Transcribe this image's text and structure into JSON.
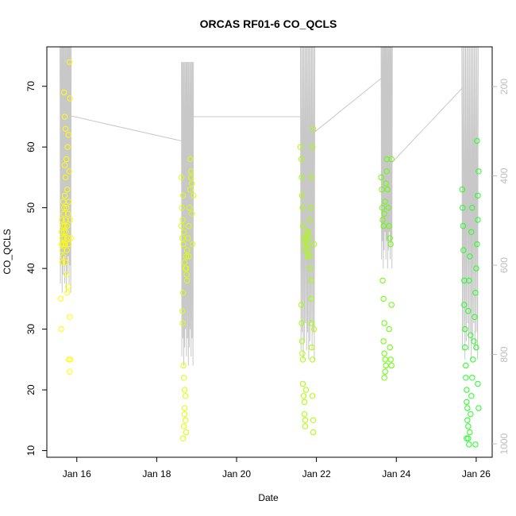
{
  "chart_data": {
    "type": "scatter",
    "title": "ORCAS RF01-6 CO_QCLS",
    "xlabel": "Date",
    "ylabel": "CO_QCLS",
    "x_ticks": [
      {
        "day": 16,
        "label": "Jan 16"
      },
      {
        "day": 18,
        "label": "Jan 18"
      },
      {
        "day": 20,
        "label": "Jan 20"
      },
      {
        "day": 22,
        "label": "Jan 22"
      },
      {
        "day": 24,
        "label": "Jan 24"
      },
      {
        "day": 26,
        "label": "Jan 26"
      }
    ],
    "xlim": [
      15.25,
      26.4
    ],
    "ylim": [
      8.9,
      76.5
    ],
    "y_ticks": [
      10,
      20,
      30,
      40,
      50,
      60,
      70
    ],
    "right_axis": {
      "description": "secondary (reversed) axis, gray",
      "ticks": [
        200,
        400,
        600,
        800,
        1000
      ],
      "range_top": 111,
      "range_bottom": 1030,
      "color": "#bdbdbd"
    },
    "grid": false,
    "series": [
      {
        "color": "#ffff00",
        "points": [
          [
            15.62,
            44
          ],
          [
            15.62,
            46
          ],
          [
            15.63,
            48
          ],
          [
            15.64,
            43
          ],
          [
            15.64,
            45
          ],
          [
            15.65,
            47
          ],
          [
            15.66,
            42
          ],
          [
            15.66,
            44
          ],
          [
            15.67,
            49
          ],
          [
            15.68,
            46
          ],
          [
            15.68,
            50
          ],
          [
            15.69,
            45
          ],
          [
            15.7,
            47
          ],
          [
            15.7,
            52
          ],
          [
            15.71,
            44
          ],
          [
            15.72,
            48
          ],
          [
            15.72,
            55
          ],
          [
            15.73,
            46
          ],
          [
            15.74,
            50
          ],
          [
            15.74,
            58
          ],
          [
            15.75,
            43
          ],
          [
            15.76,
            47
          ],
          [
            15.76,
            53
          ],
          [
            15.77,
            60
          ],
          [
            15.78,
            45
          ],
          [
            15.78,
            49
          ],
          [
            15.79,
            62
          ],
          [
            15.8,
            44
          ],
          [
            15.8,
            51
          ],
          [
            15.81,
            56
          ],
          [
            15.6,
            35
          ],
          [
            15.61,
            30
          ],
          [
            15.68,
            69
          ],
          [
            15.7,
            65
          ],
          [
            15.72,
            63
          ],
          [
            15.76,
            36
          ],
          [
            15.78,
            37
          ],
          [
            15.82,
            74
          ],
          [
            15.83,
            68
          ],
          [
            15.82,
            32
          ],
          [
            15.8,
            25
          ],
          [
            15.82,
            23
          ],
          [
            15.84,
            25
          ],
          [
            15.84,
            48
          ],
          [
            15.85,
            45
          ],
          [
            15.64,
            41
          ],
          [
            15.66,
            51
          ],
          [
            15.7,
            57
          ],
          [
            15.72,
            41
          ],
          [
            15.74,
            39
          ]
        ]
      },
      {
        "color": "#ddff00",
        "points": [
          [
            18.62,
            47
          ],
          [
            18.63,
            50
          ],
          [
            18.64,
            45
          ],
          [
            18.65,
            48
          ],
          [
            18.66,
            52
          ],
          [
            18.67,
            44
          ],
          [
            18.68,
            46
          ],
          [
            18.7,
            41
          ],
          [
            18.72,
            40
          ],
          [
            18.74,
            42
          ],
          [
            18.75,
            39
          ],
          [
            18.76,
            43
          ],
          [
            18.78,
            45
          ],
          [
            18.8,
            47
          ],
          [
            18.82,
            50
          ],
          [
            18.84,
            53
          ],
          [
            18.86,
            55
          ],
          [
            18.88,
            49
          ],
          [
            18.9,
            44
          ],
          [
            18.92,
            52
          ],
          [
            18.64,
            33
          ],
          [
            18.65,
            31
          ],
          [
            18.66,
            36
          ],
          [
            18.67,
            24
          ],
          [
            18.68,
            22
          ],
          [
            18.7,
            20
          ],
          [
            18.72,
            19
          ],
          [
            18.7,
            16
          ],
          [
            18.72,
            15
          ],
          [
            18.74,
            13
          ],
          [
            18.66,
            12
          ],
          [
            18.68,
            14
          ],
          [
            18.7,
            17
          ],
          [
            18.74,
            40
          ],
          [
            18.76,
            38
          ],
          [
            18.8,
            42
          ],
          [
            18.84,
            58
          ],
          [
            18.86,
            56
          ],
          [
            18.88,
            54
          ],
          [
            18.62,
            55
          ]
        ]
      },
      {
        "color": "#aaff00",
        "points": [
          [
            21.6,
            60
          ],
          [
            21.62,
            58
          ],
          [
            21.63,
            55
          ],
          [
            21.64,
            52
          ],
          [
            21.65,
            50
          ],
          [
            21.66,
            47
          ],
          [
            21.68,
            45
          ],
          [
            21.7,
            44
          ],
          [
            21.72,
            43
          ],
          [
            21.74,
            45
          ],
          [
            21.76,
            46
          ],
          [
            21.78,
            44
          ],
          [
            21.8,
            46
          ],
          [
            21.82,
            45
          ],
          [
            21.84,
            48
          ],
          [
            21.86,
            50
          ],
          [
            21.88,
            55
          ],
          [
            21.9,
            60
          ],
          [
            21.92,
            63
          ],
          [
            21.94,
            44
          ],
          [
            21.62,
            34
          ],
          [
            21.63,
            31
          ],
          [
            21.64,
            28
          ],
          [
            21.65,
            26
          ],
          [
            21.66,
            25
          ],
          [
            21.66,
            21
          ],
          [
            21.68,
            19
          ],
          [
            21.7,
            18
          ],
          [
            21.7,
            16
          ],
          [
            21.72,
            15
          ],
          [
            21.72,
            14
          ],
          [
            21.74,
            20
          ],
          [
            21.84,
            40
          ],
          [
            21.86,
            38
          ],
          [
            21.86,
            35
          ],
          [
            21.88,
            31
          ],
          [
            21.88,
            27
          ],
          [
            21.9,
            25
          ],
          [
            21.9,
            19
          ],
          [
            21.92,
            15
          ],
          [
            21.92,
            13
          ],
          [
            21.94,
            30
          ],
          [
            21.78,
            42
          ],
          [
            21.8,
            43
          ],
          [
            21.82,
            42
          ]
        ]
      },
      {
        "color": "#66ff00",
        "points": [
          [
            23.62,
            55
          ],
          [
            23.64,
            53
          ],
          [
            23.65,
            50
          ],
          [
            23.66,
            48
          ],
          [
            23.68,
            47
          ],
          [
            23.7,
            49
          ],
          [
            23.72,
            51
          ],
          [
            23.74,
            54
          ],
          [
            23.76,
            56
          ],
          [
            23.78,
            53
          ],
          [
            23.8,
            50
          ],
          [
            23.82,
            47
          ],
          [
            23.84,
            45
          ],
          [
            23.86,
            44
          ],
          [
            23.66,
            38
          ],
          [
            23.68,
            35
          ],
          [
            23.7,
            31
          ],
          [
            23.68,
            28
          ],
          [
            23.7,
            26
          ],
          [
            23.72,
            25
          ],
          [
            23.74,
            24
          ],
          [
            23.72,
            23
          ],
          [
            23.7,
            22
          ],
          [
            23.82,
            30
          ],
          [
            23.84,
            27
          ],
          [
            23.86,
            25
          ],
          [
            23.88,
            24
          ],
          [
            23.88,
            34
          ],
          [
            23.76,
            58
          ],
          [
            23.88,
            58
          ]
        ]
      },
      {
        "color": "#22ff22",
        "points": [
          [
            25.65,
            53
          ],
          [
            25.66,
            50
          ],
          [
            25.67,
            47
          ],
          [
            25.68,
            43
          ],
          [
            25.7,
            38
          ],
          [
            25.7,
            34
          ],
          [
            25.72,
            30
          ],
          [
            25.72,
            27
          ],
          [
            25.74,
            24
          ],
          [
            25.74,
            22
          ],
          [
            25.76,
            20
          ],
          [
            25.76,
            18
          ],
          [
            25.78,
            17
          ],
          [
            25.78,
            15
          ],
          [
            25.8,
            14
          ],
          [
            25.8,
            12
          ],
          [
            25.82,
            11
          ],
          [
            25.84,
            13
          ],
          [
            25.86,
            16
          ],
          [
            25.88,
            19
          ],
          [
            25.9,
            22
          ],
          [
            25.92,
            25
          ],
          [
            25.94,
            28
          ],
          [
            25.96,
            32
          ],
          [
            25.98,
            36
          ],
          [
            26.0,
            40
          ],
          [
            26.02,
            44
          ],
          [
            26.04,
            48
          ],
          [
            26.04,
            52
          ],
          [
            26.06,
            56
          ],
          [
            26.02,
            61
          ],
          [
            25.9,
            50
          ],
          [
            25.88,
            46
          ],
          [
            25.84,
            42
          ],
          [
            25.82,
            38
          ],
          [
            25.8,
            33
          ],
          [
            25.86,
            29
          ],
          [
            26.0,
            27
          ],
          [
            26.04,
            21
          ],
          [
            26.06,
            17
          ],
          [
            25.76,
            12
          ],
          [
            25.98,
            11
          ]
        ]
      }
    ],
    "line_series": {
      "color": "#c8c8c8",
      "connectors": [
        [
          [
            15.8,
            65.2
          ],
          [
            18.62,
            61.0
          ]
        ],
        [
          [
            18.9,
            65.0
          ],
          [
            21.62,
            65.0
          ]
        ],
        [
          [
            21.96,
            62.5
          ],
          [
            23.62,
            71.3
          ]
        ],
        [
          [
            23.9,
            57.5
          ],
          [
            25.65,
            69.7
          ]
        ]
      ],
      "flight_segments": [
        {
          "x0": 15.58,
          "x1": 15.86,
          "top": 76.5,
          "bottom": 36
        },
        {
          "x0": 18.62,
          "x1": 18.92,
          "top": 74,
          "bottom": 24
        },
        {
          "x0": 21.6,
          "x1": 21.96,
          "top": 76.5,
          "bottom": 25
        },
        {
          "x0": 23.62,
          "x1": 23.9,
          "top": 76.5,
          "bottom": 40
        },
        {
          "x0": 25.64,
          "x1": 26.05,
          "top": 76.5,
          "bottom": 25
        }
      ]
    }
  }
}
